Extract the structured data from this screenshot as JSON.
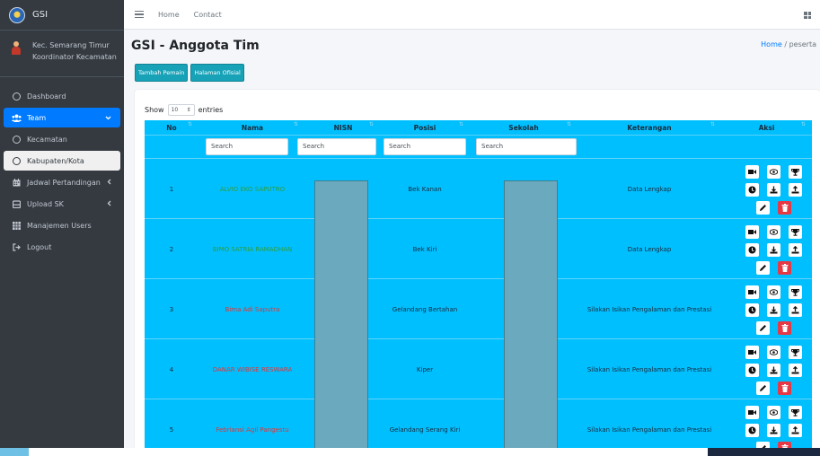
{
  "brand": {
    "name": "GSI"
  },
  "user": {
    "line1": "Kec. Semarang Timur",
    "line2": "Koordinator Kecamatan"
  },
  "sidebar": {
    "items": [
      {
        "label": "Dashboard",
        "icon": "circle-icon"
      },
      {
        "label": "Team",
        "icon": "users-icon",
        "active": true
      },
      {
        "label": "Kecamatan",
        "icon": "circle-icon"
      },
      {
        "label": "Kabupaten/Kota",
        "icon": "circle-icon",
        "highlight": true
      },
      {
        "label": "Jadwal Pertandingan",
        "icon": "calendar-icon"
      },
      {
        "label": "Upload SK",
        "icon": "upload-box-icon"
      },
      {
        "label": "Manajemen Users",
        "icon": "table-grid-icon"
      },
      {
        "label": "Logout",
        "icon": "logout-icon"
      }
    ]
  },
  "topbar": {
    "home": "Home",
    "contact": "Contact"
  },
  "page": {
    "title": "GSI - Anggota Tim",
    "breadcrumb_home": "Home",
    "breadcrumb_sep": "/",
    "breadcrumb_current": "peserta"
  },
  "buttons": {
    "tambah": "Tambah Pemain",
    "halaman": "Halaman Ofisial"
  },
  "table_controls": {
    "show": "Show",
    "entries_value": "10",
    "entries": "entries"
  },
  "table": {
    "headers": [
      "No",
      "Nama",
      "NISN",
      "Posisi",
      "Sekolah",
      "Keterangan",
      "Aksi"
    ],
    "search_placeholder": "Search",
    "rows": [
      {
        "no": "1",
        "nama": "ALVIO EKO SAPUTRO",
        "posisi": "Bek Kanan",
        "keterangan": "Data Lengkap",
        "status": "complete"
      },
      {
        "no": "2",
        "nama": "BIMO SATRIA RAMADHAN",
        "posisi": "Bek Kiri",
        "keterangan": "Data Lengkap",
        "status": "complete"
      },
      {
        "no": "3",
        "nama": "Bima Adi Saputra",
        "posisi": "Gelandang Bertahan",
        "keterangan": "Silakan Isikan Pengalaman dan Prestasi",
        "status": "incomplete"
      },
      {
        "no": "4",
        "nama": "DANAR WIBISE RESWARA",
        "posisi": "Kiper",
        "keterangan": "Silakan Isikan Pengalaman dan Prestasi",
        "status": "incomplete"
      },
      {
        "no": "5",
        "nama": "Febriansi Agil Pangestu",
        "posisi": "Gelandang Serang Kiri",
        "keterangan": "Silakan Isikan Pengalaman dan Prestasi",
        "status": "incomplete"
      }
    ],
    "action_icons": [
      "video-icon",
      "eye-icon",
      "trophy-icon",
      "clock-icon",
      "download-icon",
      "upload-icon",
      "edit-icon",
      "trash-icon"
    ]
  },
  "colors": {
    "sidebar": "#343a40",
    "accent": "#007bff",
    "table": "#00bfff",
    "teal": "#17a2b8",
    "green_name": "#2e9e3a",
    "red_name": "#e03535"
  }
}
